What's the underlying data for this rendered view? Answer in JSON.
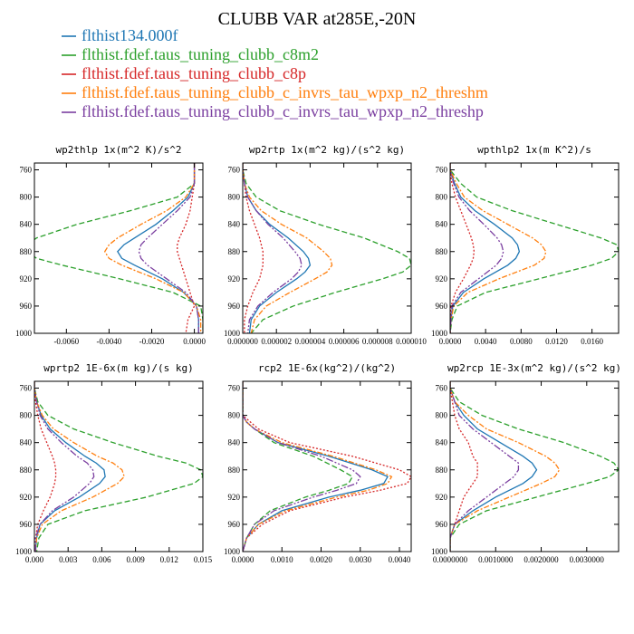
{
  "title": "CLUBB VAR at285E,-20N",
  "legend": [
    {
      "label": "flthist134.000f",
      "color": "#1f77b4",
      "dash": "solid"
    },
    {
      "label": "flthist.fdef.taus_tuning_clubb_c8m2",
      "color": "#2ca02c",
      "dash": "6,3"
    },
    {
      "label": "flthist.fdef.taus_tuning_clubb_c8p",
      "color": "#d62728",
      "dash": "2,2"
    },
    {
      "label": "flthist.fdef.taus_tuning_clubb_c_invrs_tau_wpxp_n2_threshm",
      "color": "#ff7f0e",
      "dash": "6,2,2,2"
    },
    {
      "label": "flthist.fdef.taus_tuning_clubb_c_invrs_tau_wpxp_n2_threshp",
      "color": "#7b3fa0",
      "dash": "8,2,2,2,2,2"
    }
  ],
  "chart_data": [
    {
      "type": "line",
      "title": "wp2thlp  1x(m^2 K)/s^2",
      "xlim": [
        -0.0075,
        0.0004
      ],
      "ylim": [
        1000,
        750
      ],
      "xticks": [
        -0.006,
        -0.004,
        -0.002,
        0.0
      ],
      "xtick_labels": [
        "-0.0060",
        "-0.0040",
        "-0.0020",
        "0.0000"
      ],
      "yticks": [
        760,
        800,
        840,
        880,
        920,
        960,
        1000
      ],
      "ytick_labels": [
        "760",
        "800",
        "840",
        "880",
        "920",
        "960",
        "1000"
      ],
      "y": [
        750,
        760,
        780,
        800,
        820,
        840,
        860,
        870,
        880,
        890,
        900,
        920,
        940,
        960,
        980,
        1000
      ],
      "series": [
        {
          "values": [
            0,
            0,
            0,
            -0.0003,
            -0.001,
            -0.0018,
            -0.0028,
            -0.0033,
            -0.0036,
            -0.0034,
            -0.0028,
            -0.0015,
            -0.0005,
            0.0001,
            0.0002,
            0.0002
          ]
        },
        {
          "values": [
            0,
            0,
            0,
            -0.0008,
            -0.003,
            -0.0055,
            -0.0074,
            -0.0078,
            -0.0078,
            -0.0074,
            -0.0062,
            -0.0035,
            -0.001,
            0.0003,
            0.0004,
            0.0004
          ]
        },
        {
          "values": [
            0,
            0,
            0,
            -0.0001,
            -0.0002,
            -0.0004,
            -0.0007,
            -0.0008,
            -0.0008,
            -0.0007,
            -0.0006,
            -0.0004,
            -0.0002,
            0.0,
            -0.0003,
            -0.0004
          ]
        },
        {
          "values": [
            0,
            0,
            0,
            -0.0004,
            -0.0013,
            -0.0025,
            -0.0036,
            -0.004,
            -0.0042,
            -0.004,
            -0.0034,
            -0.0018,
            -0.0005,
            0.0001,
            0.0003,
            0.0003
          ]
        },
        {
          "values": [
            0,
            0,
            0,
            -0.0002,
            -0.0008,
            -0.0015,
            -0.0022,
            -0.0025,
            -0.0026,
            -0.0025,
            -0.0022,
            -0.0013,
            -0.0004,
            0.0001,
            0.0002,
            0.0002
          ]
        }
      ]
    },
    {
      "type": "line",
      "title": "wp2rtp  1x(m^2 kg)/(s^2 kg)",
      "xlim": [
        0,
        1e-05
      ],
      "ylim": [
        1000,
        750
      ],
      "xticks": [
        0,
        2e-06,
        4e-06,
        6e-06,
        8e-06,
        1e-05
      ],
      "xtick_labels": [
        "0.000000",
        "0.000002",
        "0.000004",
        "0.000006",
        "0.000008",
        "0.000010"
      ],
      "yticks": [
        760,
        800,
        840,
        880,
        920,
        960,
        1000
      ],
      "ytick_labels": [
        "760",
        "800",
        "840",
        "880",
        "920",
        "960",
        "1000"
      ],
      "y": [
        750,
        760,
        780,
        800,
        820,
        840,
        860,
        880,
        890,
        900,
        910,
        920,
        940,
        960,
        980,
        1000
      ],
      "series": [
        {
          "values": [
            0,
            0,
            1e-07,
            3e-07,
            8e-07,
            1.6e-06,
            2.7e-06,
            3.6e-06,
            3.9e-06,
            4e-06,
            3.7e-06,
            3.2e-06,
            2e-06,
            1e-06,
            5e-07,
            4e-07
          ]
        },
        {
          "values": [
            0,
            0,
            2e-07,
            8e-07,
            2.2e-06,
            4.5e-06,
            7.2e-06,
            9.2e-06,
            9.9e-06,
            1e-05,
            9.5e-06,
            8.3e-06,
            5.5e-06,
            3e-06,
            1.2e-06,
            5e-07
          ]
        },
        {
          "values": [
            0,
            0,
            1e-07,
            2e-07,
            4e-07,
            7e-07,
            1e-06,
            1.2e-06,
            1.2e-06,
            1.2e-06,
            1.1e-06,
            1e-06,
            6e-07,
            3e-07,
            1e-07,
            1e-07
          ]
        },
        {
          "values": [
            0,
            0,
            1e-07,
            4e-07,
            1.1e-06,
            2.3e-06,
            3.8e-06,
            4.8e-06,
            5.2e-06,
            5.3e-06,
            5e-06,
            4.3e-06,
            2.8e-06,
            1.4e-06,
            7e-07,
            5e-07
          ]
        },
        {
          "values": [
            0,
            0,
            1e-07,
            3e-07,
            8e-07,
            1.5e-06,
            2.4e-06,
            3.1e-06,
            3.4e-06,
            3.5e-06,
            3.3e-06,
            2.9e-06,
            1.8e-06,
            9e-07,
            4e-07,
            3e-07
          ]
        }
      ]
    },
    {
      "type": "line",
      "title": "wpthlp2  1x(m K^2)/s",
      "xlim": [
        0,
        0.019
      ],
      "ylim": [
        1000,
        750
      ],
      "xticks": [
        0,
        0.004,
        0.008,
        0.012,
        0.016
      ],
      "xtick_labels": [
        "0.0000",
        "0.0040",
        "0.0080",
        "0.0120",
        "0.0160"
      ],
      "yticks": [
        760,
        800,
        840,
        880,
        920,
        960,
        1000
      ],
      "ytick_labels": [
        "760",
        "800",
        "840",
        "880",
        "920",
        "960",
        "1000"
      ],
      "y": [
        750,
        760,
        780,
        800,
        820,
        840,
        860,
        870,
        880,
        890,
        900,
        920,
        940,
        960,
        980,
        1000
      ],
      "series": [
        {
          "values": [
            0,
            0,
            0.0005,
            0.0012,
            0.0028,
            0.005,
            0.007,
            0.0076,
            0.0078,
            0.0074,
            0.0065,
            0.0038,
            0.0015,
            0.0003,
            0.0001,
            0
          ],
          "_note": ""
        },
        {
          "values": [
            0,
            0,
            0.0012,
            0.003,
            0.007,
            0.012,
            0.017,
            0.0188,
            0.019,
            0.0182,
            0.016,
            0.01,
            0.004,
            0.0008,
            0.0002,
            0
          ]
        },
        {
          "values": [
            0,
            0,
            0.0002,
            0.0006,
            0.0012,
            0.0018,
            0.0024,
            0.0026,
            0.0027,
            0.0026,
            0.0023,
            0.0015,
            0.0006,
            0.0001,
            0,
            0
          ]
        },
        {
          "values": [
            0,
            0,
            0.0007,
            0.0016,
            0.0037,
            0.0065,
            0.0093,
            0.0103,
            0.0108,
            0.0106,
            0.0095,
            0.0055,
            0.002,
            0.0004,
            0.0001,
            0
          ]
        },
        {
          "values": [
            0,
            0,
            0.0004,
            0.001,
            0.0022,
            0.0038,
            0.0053,
            0.0058,
            0.006,
            0.0058,
            0.0052,
            0.0032,
            0.0012,
            0.0002,
            0.0001,
            0
          ]
        }
      ]
    },
    {
      "type": "line",
      "title": "wprtp2  1E-6x(m kg)/(s kg)",
      "xlim": [
        0,
        0.015
      ],
      "ylim": [
        1000,
        750
      ],
      "xticks": [
        0,
        0.003,
        0.006,
        0.009,
        0.012,
        0.015
      ],
      "xtick_labels": [
        "0.000",
        "0.003",
        "0.006",
        "0.009",
        "0.012",
        "0.015"
      ],
      "yticks": [
        760,
        800,
        840,
        880,
        920,
        960,
        1000
      ],
      "ytick_labels": [
        "760",
        "800",
        "840",
        "880",
        "920",
        "960",
        "1000"
      ],
      "y": [
        750,
        760,
        780,
        800,
        820,
        840,
        860,
        870,
        880,
        890,
        900,
        920,
        940,
        960,
        980,
        1000
      ],
      "series": [
        {
          "values": [
            0,
            0,
            0.0002,
            0.0006,
            0.0014,
            0.0028,
            0.0045,
            0.0055,
            0.0062,
            0.0063,
            0.0058,
            0.004,
            0.0018,
            0.0005,
            0.0002,
            0.0001
          ]
        },
        {
          "values": [
            0,
            0,
            0.0003,
            0.0012,
            0.0035,
            0.007,
            0.011,
            0.0135,
            0.0148,
            0.015,
            0.0142,
            0.01,
            0.0045,
            0.0012,
            0.0004,
            0.0002
          ]
        },
        {
          "values": [
            0,
            0,
            0.0001,
            0.0003,
            0.0006,
            0.0011,
            0.0016,
            0.0018,
            0.0019,
            0.0019,
            0.0018,
            0.0014,
            0.0008,
            0.0003,
            0.0001,
            0
          ]
        },
        {
          "values": [
            0,
            0,
            0.0002,
            0.0007,
            0.0017,
            0.0035,
            0.0056,
            0.007,
            0.0078,
            0.008,
            0.0074,
            0.0052,
            0.0024,
            0.0007,
            0.0002,
            0.0001
          ]
        },
        {
          "values": [
            0,
            0,
            0.0002,
            0.0005,
            0.0012,
            0.0024,
            0.0038,
            0.0047,
            0.0052,
            0.0053,
            0.0049,
            0.0035,
            0.0016,
            0.0005,
            0.0001,
            0.0001
          ]
        }
      ]
    },
    {
      "type": "line",
      "title": "rcp2  1E-6x(kg^2)/(kg^2)",
      "xlim": [
        0,
        0.0043
      ],
      "ylim": [
        1000,
        750
      ],
      "xticks": [
        0,
        0.001,
        0.002,
        0.003,
        0.004
      ],
      "xtick_labels": [
        "0.0000",
        "0.0010",
        "0.0020",
        "0.0030",
        "0.0040"
      ],
      "yticks": [
        760,
        800,
        840,
        880,
        920,
        960,
        1000
      ],
      "ytick_labels": [
        "760",
        "800",
        "840",
        "880",
        "920",
        "960",
        "1000"
      ],
      "y": [
        750,
        760,
        780,
        800,
        810,
        820,
        840,
        860,
        880,
        890,
        900,
        910,
        920,
        940,
        960,
        980,
        1000
      ],
      "series": [
        {
          "values": [
            0,
            0,
            0,
            0,
            0.0001,
            0.0003,
            0.0009,
            0.0022,
            0.0033,
            0.0037,
            0.0036,
            0.003,
            0.0022,
            0.001,
            0.0004,
            0.0001,
            0
          ]
        },
        {
          "values": [
            0,
            0,
            0,
            0,
            0.0001,
            0.0003,
            0.0008,
            0.0018,
            0.0025,
            0.0028,
            0.0027,
            0.0022,
            0.0016,
            0.0007,
            0.0003,
            0.0001,
            0
          ]
        },
        {
          "values": [
            0,
            0,
            0,
            0,
            0.0002,
            0.0004,
            0.0012,
            0.0028,
            0.004,
            0.0043,
            0.0042,
            0.0035,
            0.0026,
            0.0012,
            0.0005,
            0.0001,
            0
          ]
        },
        {
          "values": [
            0,
            0,
            0,
            0,
            0.0001,
            0.0003,
            0.001,
            0.0023,
            0.0034,
            0.0038,
            0.0037,
            0.0032,
            0.0024,
            0.0011,
            0.0004,
            0.0001,
            0
          ]
        },
        {
          "values": [
            0,
            0,
            0,
            0,
            0.0001,
            0.0003,
            0.0009,
            0.002,
            0.0028,
            0.003,
            0.0029,
            0.0024,
            0.0018,
            0.0008,
            0.0003,
            0.0001,
            0
          ]
        }
      ]
    },
    {
      "type": "line",
      "title": "wp2rcp  1E-3x(m^2 kg)/(s^2 kg)",
      "xlim": [
        0,
        0.0037
      ],
      "ylim": [
        1000,
        750
      ],
      "xticks": [
        0,
        0.001,
        0.002,
        0.003
      ],
      "xtick_labels": [
        "0.0000000",
        "0.0010000",
        "0.0020000",
        "0.0030000"
      ],
      "yticks": [
        760,
        800,
        840,
        880,
        920,
        960,
        1000
      ],
      "ytick_labels": [
        "760",
        "800",
        "840",
        "880",
        "920",
        "960",
        "1000"
      ],
      "y": [
        750,
        760,
        780,
        800,
        820,
        840,
        860,
        870,
        880,
        890,
        900,
        920,
        940,
        960,
        980,
        1000
      ],
      "series": [
        {
          "values": [
            0,
            0,
            0.0001,
            0.0003,
            0.0006,
            0.0011,
            0.0016,
            0.0018,
            0.0019,
            0.0018,
            0.0016,
            0.001,
            0.0005,
            0.0001,
            0,
            0
          ]
        },
        {
          "values": [
            0,
            0,
            0.0002,
            0.0007,
            0.0015,
            0.0025,
            0.0033,
            0.0036,
            0.0037,
            0.0035,
            0.003,
            0.0019,
            0.0008,
            0.0002,
            0,
            0
          ]
        },
        {
          "values": [
            0,
            0,
            5e-05,
            0.0001,
            0.0002,
            0.0004,
            0.0005,
            0.0006,
            0.0006,
            0.0006,
            0.0005,
            0.0003,
            0.0002,
            0.0001,
            0,
            0
          ]
        },
        {
          "values": [
            0,
            0,
            0.0001,
            0.0004,
            0.0008,
            0.0015,
            0.0021,
            0.0023,
            0.0024,
            0.0023,
            0.002,
            0.0013,
            0.0006,
            0.0001,
            0,
            0
          ]
        },
        {
          "values": [
            0,
            0,
            0.0001,
            0.0002,
            0.0005,
            0.0009,
            0.0013,
            0.0015,
            0.0015,
            0.0014,
            0.0012,
            0.0008,
            0.0004,
            0.0001,
            0,
            0
          ]
        }
      ]
    }
  ]
}
